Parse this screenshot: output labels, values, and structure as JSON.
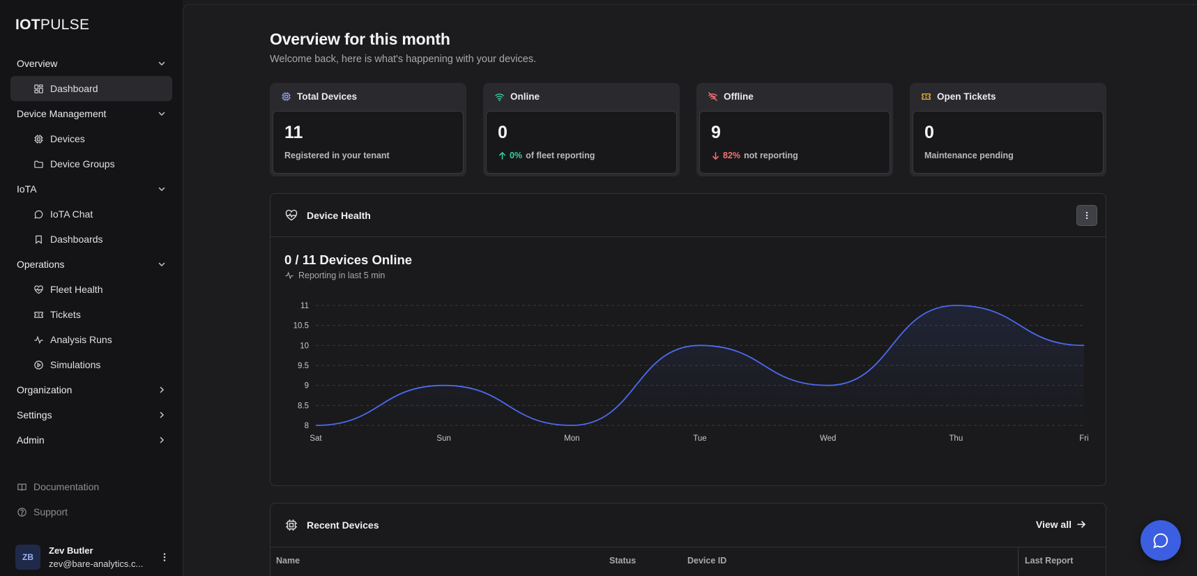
{
  "app": {
    "logo_bold": "IOT",
    "logo_light": "PULSE"
  },
  "sidebar": {
    "sections": [
      {
        "label": "Overview",
        "expanded": true,
        "items": [
          {
            "label": "Dashboard",
            "icon": "dashboard-icon",
            "active": true
          }
        ]
      },
      {
        "label": "Device Management",
        "expanded": true,
        "items": [
          {
            "label": "Devices",
            "icon": "chip-icon"
          },
          {
            "label": "Device Groups",
            "icon": "folder-icon"
          }
        ]
      },
      {
        "label": "IoTA",
        "expanded": true,
        "items": [
          {
            "label": "IoTA Chat",
            "icon": "chat-bubble-icon"
          },
          {
            "label": "Dashboards",
            "icon": "bookmark-icon"
          }
        ]
      },
      {
        "label": "Operations",
        "expanded": true,
        "items": [
          {
            "label": "Fleet Health",
            "icon": "heart-pulse-icon"
          },
          {
            "label": "Tickets",
            "icon": "ticket-icon"
          },
          {
            "label": "Analysis Runs",
            "icon": "activity-icon"
          },
          {
            "label": "Simulations",
            "icon": "play-circle-icon"
          }
        ]
      },
      {
        "label": "Organization",
        "expanded": false,
        "items": []
      },
      {
        "label": "Settings",
        "expanded": false,
        "items": []
      },
      {
        "label": "Admin",
        "expanded": false,
        "items": []
      }
    ],
    "footer_links": [
      {
        "label": "Documentation",
        "icon": "book-icon"
      },
      {
        "label": "Support",
        "icon": "help-circle-icon"
      }
    ],
    "user": {
      "initials": "ZB",
      "name": "Zev Butler",
      "email": "zev@bare-analytics.c..."
    }
  },
  "header": {
    "title": "Overview for this month",
    "subtitle": "Welcome back, here is what's happening with your devices."
  },
  "stats": [
    {
      "label": "Total Devices",
      "value": "11",
      "desc": "Registered in your tenant",
      "icon": "chip-icon",
      "color": "#8ea2ff"
    },
    {
      "label": "Online",
      "value": "0",
      "delta": "0%",
      "delta_dir": "up",
      "desc": "of fleet reporting",
      "icon": "wifi-icon",
      "color": "#34d399"
    },
    {
      "label": "Offline",
      "value": "9",
      "delta": "82%",
      "delta_dir": "down",
      "desc": "not reporting",
      "icon": "wifi-off-icon",
      "color": "#f87171"
    },
    {
      "label": "Open Tickets",
      "value": "0",
      "desc": "Maintenance pending",
      "icon": "ticket-icon",
      "color": "#fbbf24"
    }
  ],
  "device_health": {
    "title": "Device Health",
    "summary": "0 / 11 Devices Online",
    "subtitle": "Reporting in last 5 min"
  },
  "chart_data": {
    "type": "area",
    "categories": [
      "Sat",
      "Sun",
      "Mon",
      "Tue",
      "Wed",
      "Thu",
      "Fri"
    ],
    "values": [
      8,
      9,
      8,
      10,
      9,
      11,
      10
    ],
    "yticks": [
      8,
      8.5,
      9,
      9.5,
      10,
      10.5,
      11
    ],
    "ylim": [
      8,
      11
    ],
    "grid": true,
    "line_color": "#4b6bef"
  },
  "recent_devices": {
    "title": "Recent Devices",
    "view_all": "View all",
    "columns": [
      "Name",
      "Status",
      "Device ID",
      "Last Report"
    ]
  },
  "colors": {
    "accent": "#3b5fe0",
    "background": "#1c1c1e",
    "sidebar": "#141416"
  }
}
